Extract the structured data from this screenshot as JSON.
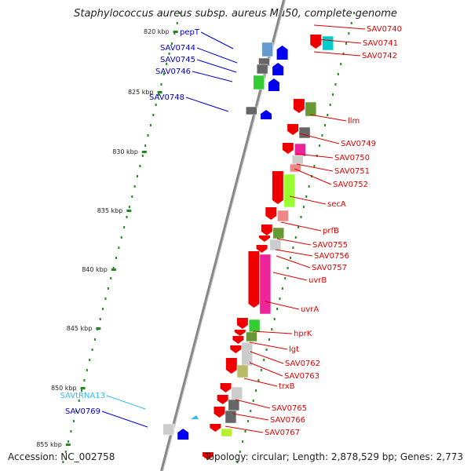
{
  "title": "Staphylococcus aureus subsp. aureus Mu50, complete genome",
  "footer": {
    "accession": "Accession: NC_002758",
    "topology": "Topology: circular; Length: 2,878,529 bp; Genes: 2,773"
  },
  "colors": {
    "forward_arrow": "#0000ee",
    "reverse_arrow": "#ee0000",
    "left_label": "#0000cc",
    "right_label": "#dd0000",
    "trna_label": "#33bbee",
    "tick": "#228822",
    "backbone": "#888888"
  },
  "scale_labels": [
    "820 kbp",
    "825 kbp",
    "830 kbp",
    "835 kbp",
    "840 kbp",
    "845 kbp",
    "850 kbp",
    "855 kbp"
  ],
  "left_labels": [
    "pepT",
    "SAV0744",
    "SAV0745",
    "SAV0746",
    "SAV0748",
    "SAVtRNA13",
    "SAV0769"
  ],
  "right_labels": [
    "SAV0740",
    "SAV0741",
    "SAV0742",
    "llm",
    "SAV0749",
    "SAV0750",
    "SAV0751",
    "SAV0752",
    "secA",
    "prfB",
    "SAV0755",
    "SAV0756",
    "SAV0757",
    "uvrB",
    "uvrA",
    "hprK",
    "lgt",
    "SAV0762",
    "SAV0763",
    "trxB",
    "SAV0765",
    "SAV0766",
    "SAV0767"
  ]
}
